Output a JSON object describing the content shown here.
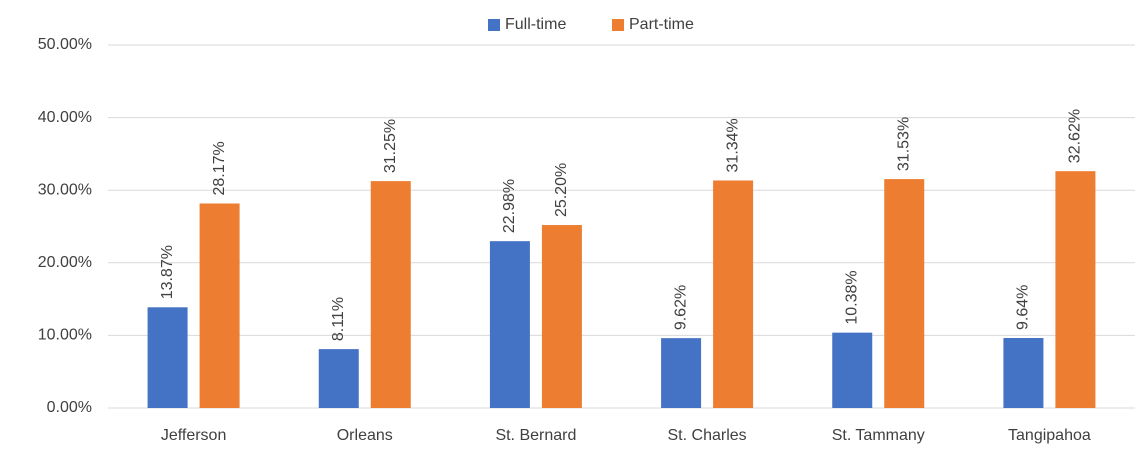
{
  "chart_data": {
    "type": "bar",
    "categories": [
      "Jefferson",
      "Orleans",
      "St. Bernard",
      "St. Charles",
      "St. Tammany",
      "Tangipahoa"
    ],
    "series": [
      {
        "name": "Full-time",
        "color": "#4472c4",
        "values": [
          13.87,
          8.11,
          22.98,
          9.62,
          10.38,
          9.64
        ],
        "value_labels": [
          "13.87%",
          "8.11%",
          "22.98%",
          "9.62%",
          "10.38%",
          "9.64%"
        ]
      },
      {
        "name": "Part-time",
        "color": "#ed7d31",
        "values": [
          28.17,
          31.25,
          25.2,
          31.34,
          31.53,
          32.62
        ],
        "value_labels": [
          "28.17%",
          "31.25%",
          "25.20%",
          "31.34%",
          "31.53%",
          "32.62%"
        ]
      }
    ],
    "ylim": [
      0,
      50
    ],
    "yticks": [
      {
        "value": 0,
        "label": "0.00%"
      },
      {
        "value": 10,
        "label": "10.00%"
      },
      {
        "value": 20,
        "label": "20.00%"
      },
      {
        "value": 30,
        "label": "30.00%"
      },
      {
        "value": 40,
        "label": "40.00%"
      },
      {
        "value": 50,
        "label": "50.00%"
      }
    ],
    "grid": true,
    "legend": "top"
  }
}
